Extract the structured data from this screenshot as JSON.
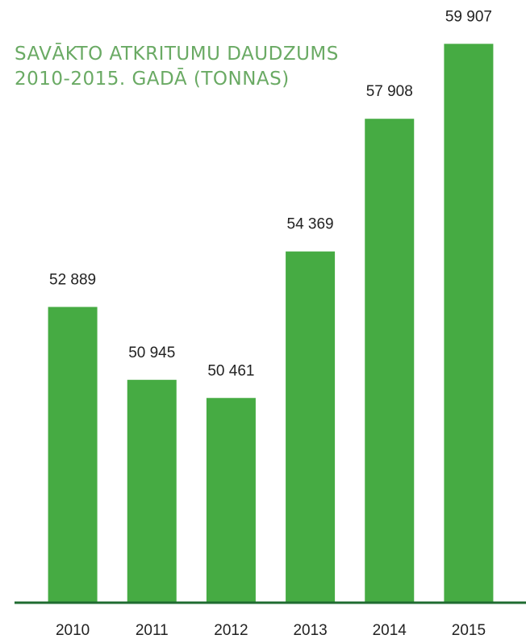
{
  "chart_data": {
    "type": "bar",
    "title": "SAVĀKTO ATKRITUMU DAUDZUMS 2010-2015. GADĀ (TONNAS)",
    "categories": [
      "2010",
      "2011",
      "2012",
      "2013",
      "2014",
      "2015"
    ],
    "values": [
      52889,
      50945,
      50461,
      54369,
      57908,
      59907
    ],
    "value_labels": [
      "52 889",
      "50 945",
      "50 461",
      "54 369",
      "57 908",
      "59 907"
    ],
    "color": "#46ab43",
    "ylim": [
      45000,
      60000
    ]
  }
}
